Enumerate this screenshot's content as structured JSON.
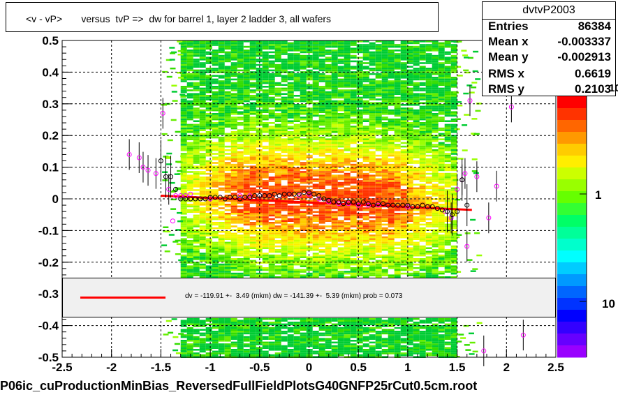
{
  "title": "<v - vP>       versus  tvP =>  dw for barrel 1, layer 2 ladder 3, all wafers",
  "stats": {
    "name": "dvtvP2003",
    "rows": [
      {
        "label": "Entries",
        "value": "86384"
      },
      {
        "label": "Mean x",
        "value": "-0.003337"
      },
      {
        "label": "Mean y",
        "value": "-0.002913"
      },
      {
        "label": "RMS x",
        "value": "0.6619"
      },
      {
        "label": "RMS y",
        "value": "0.2103"
      }
    ]
  },
  "legend": {
    "text": "dv = -119.91 +-  3.49 (mkm) dw = -141.39 +-  5.39 (mkm) prob = 0.073",
    "line_color": "#ff0000"
  },
  "footer": "P06ic_cuProductionMinBias_ReversedFullFieldPlotsG40GNFP25rCut0.5cm.root",
  "colorbar": {
    "labels": [
      {
        "text": "10",
        "frac": 0.0
      },
      {
        "text": "1",
        "frac": 0.42
      },
      {
        "text": "10",
        "frac": 0.785
      }
    ],
    "colors": [
      "#ff0000",
      "#ff3300",
      "#ff6600",
      "#ff9900",
      "#ffcc00",
      "#ffee00",
      "#ccff00",
      "#99ff00",
      "#66ff00",
      "#33ff33",
      "#00ff66",
      "#00ff99",
      "#00ffcc",
      "#00ffff",
      "#00ccff",
      "#0099ff",
      "#0066ff",
      "#0033ff",
      "#0000ff",
      "#3300ff",
      "#6600ff",
      "#9900ff"
    ]
  },
  "chart_data": {
    "type": "scatter",
    "title": "<v - vP>       versus  tvP =>  dw for barrel 1, layer 2 ladder 3, all wafers",
    "xlim": [
      -2.5,
      2.5
    ],
    "ylim": [
      -0.5,
      0.5
    ],
    "xticks": [
      -2.5,
      -2,
      -1.5,
      -1,
      -0.5,
      0,
      0.5,
      1,
      1.5,
      2,
      2.5
    ],
    "yticks": [
      -0.5,
      -0.4,
      -0.3,
      -0.2,
      -0.1,
      0,
      0.1,
      0.2,
      0.3,
      0.4,
      0.5
    ],
    "xtick_labels": [
      "-2.5",
      "-2",
      "-1.5",
      "-1",
      "-0.5",
      "0",
      "0.5",
      "1",
      "1.5",
      "2",
      "2.5"
    ],
    "ytick_labels": [
      "-0.5",
      "-0.4",
      "-0.3",
      "-0.2",
      "-0.1",
      "0",
      "0.1",
      "0.2",
      "0.3",
      "0.4",
      "0.5"
    ],
    "grid": true,
    "heatmap_x_range": [
      -1.3,
      1.45
    ],
    "fit_line": {
      "x": [
        -1.5,
        1.65
      ],
      "y": [
        0.01,
        -0.035
      ],
      "color": "#ff0000"
    },
    "profile_black": {
      "x": [
        -1.5,
        -1.45,
        -1.4,
        -1.35,
        -1.3,
        -1.25,
        -1.2,
        -1.15,
        -1.1,
        -1.05,
        -1.0,
        -0.95,
        -0.9,
        -0.85,
        -0.8,
        -0.75,
        -0.7,
        -0.65,
        -0.6,
        -0.55,
        -0.5,
        -0.45,
        -0.4,
        -0.35,
        -0.3,
        -0.25,
        -0.2,
        -0.15,
        -0.1,
        -0.05,
        0.0,
        0.05,
        0.1,
        0.15,
        0.2,
        0.25,
        0.3,
        0.35,
        0.4,
        0.45,
        0.5,
        0.55,
        0.6,
        0.65,
        0.7,
        0.75,
        0.8,
        0.85,
        0.9,
        0.95,
        1.0,
        1.05,
        1.1,
        1.15,
        1.2,
        1.25,
        1.3,
        1.35,
        1.4,
        1.45,
        1.5,
        1.55,
        1.6
      ],
      "y": [
        0.12,
        0.07,
        0.07,
        0.03,
        0.0,
        0.0,
        0.0,
        0.0,
        0.0,
        0.0,
        0.005,
        0.005,
        0.005,
        0.0,
        0.005,
        0.005,
        0.0,
        0.005,
        0.005,
        0.01,
        0.01,
        0.01,
        0.01,
        0.015,
        0.01,
        0.015,
        0.015,
        0.015,
        0.015,
        0.02,
        0.02,
        0.015,
        0.01,
        0.0,
        -0.005,
        -0.01,
        -0.01,
        -0.015,
        -0.01,
        -0.01,
        -0.015,
        -0.01,
        -0.015,
        -0.02,
        -0.015,
        -0.015,
        -0.02,
        -0.02,
        -0.02,
        -0.02,
        -0.02,
        -0.025,
        -0.025,
        -0.02,
        -0.025,
        -0.025,
        -0.03,
        -0.035,
        -0.04,
        -0.05,
        -0.04,
        0.06,
        -0.02
      ]
    },
    "profile_magenta": {
      "x": [
        -1.82,
        -1.72,
        -1.68,
        -1.63,
        -1.55,
        -1.48,
        -1.42,
        -1.38,
        -1.35,
        -1.3,
        -1.25,
        -1.2,
        -1.1,
        -1.0,
        -0.9,
        -0.8,
        -0.7,
        -0.6,
        -0.5,
        -0.4,
        -0.3,
        -0.2,
        -0.1,
        0.0,
        0.1,
        0.2,
        0.3,
        0.4,
        0.5,
        0.6,
        0.7,
        0.8,
        0.9,
        1.0,
        1.1,
        1.2,
        1.3,
        1.38,
        1.44,
        1.5,
        1.55,
        1.58,
        1.6,
        1.63,
        1.7,
        1.77,
        1.82,
        1.9,
        2.05,
        2.17
      ],
      "y": [
        0.14,
        0.13,
        0.1,
        0.09,
        0.08,
        0.27,
        0.03,
        -0.07,
        0.01,
        0.01,
        0.01,
        0.015,
        0.0,
        0.0,
        0.005,
        0.005,
        0.01,
        0.01,
        0.01,
        0.01,
        0.01,
        0.015,
        0.01,
        0.015,
        0.0,
        -0.01,
        -0.015,
        -0.015,
        -0.02,
        -0.02,
        -0.02,
        -0.02,
        -0.02,
        -0.025,
        -0.025,
        -0.025,
        -0.03,
        -0.04,
        -0.06,
        0.03,
        0.06,
        0.08,
        -0.15,
        0.31,
        0.07,
        -0.48,
        -0.06,
        0.04,
        0.29,
        -0.43
      ]
    }
  }
}
